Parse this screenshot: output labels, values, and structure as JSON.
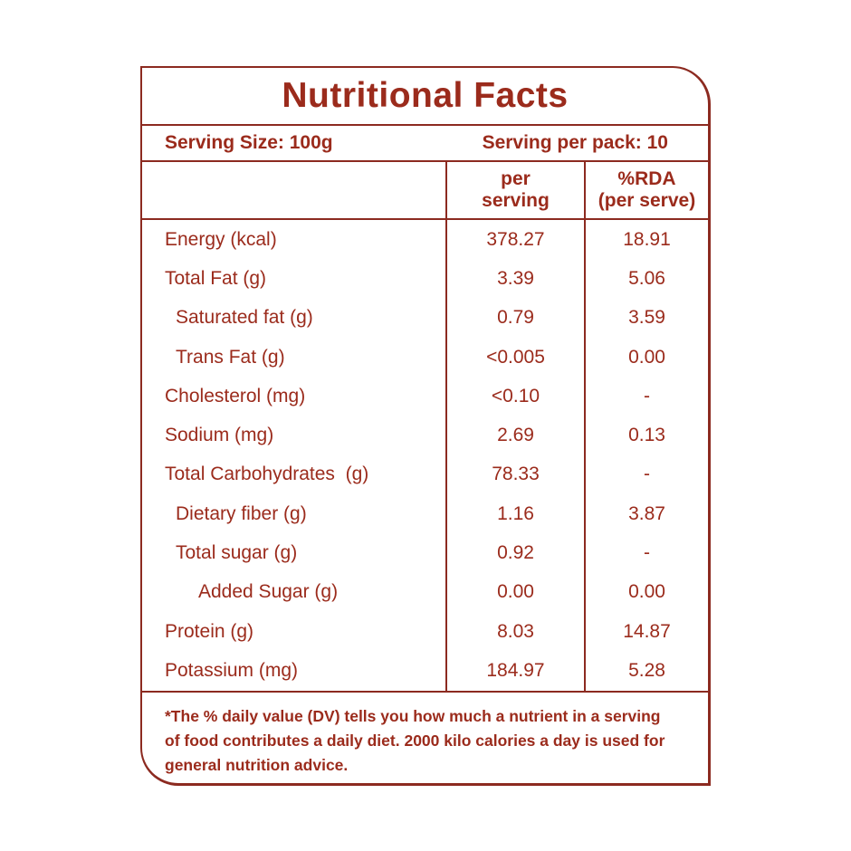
{
  "label": {
    "title": "Nutritional Facts",
    "serving": {
      "size_text": "Serving Size: 100g",
      "per_pack_text": "Serving per pack: 10"
    },
    "header": {
      "per_serving": [
        "per",
        "serving"
      ],
      "rda": [
        "%RDA",
        "(per serve)"
      ]
    },
    "rows": [
      {
        "label": "Energy (kcal)",
        "per_serving": "378.27",
        "rda": "18.91",
        "indent": 0
      },
      {
        "label": "Total Fat (g)",
        "per_serving": "3.39",
        "rda": "5.06",
        "indent": 0
      },
      {
        "label": "Saturated fat (g)",
        "per_serving": "0.79",
        "rda": "3.59",
        "indent": 1
      },
      {
        "label": "Trans Fat (g)",
        "per_serving": "<0.005",
        "rda": "0.00",
        "indent": 1
      },
      {
        "label": "Cholesterol (mg)",
        "per_serving": "<0.10",
        "rda": "-",
        "indent": 0
      },
      {
        "label": "Sodium (mg)",
        "per_serving": "2.69",
        "rda": "0.13",
        "indent": 0
      },
      {
        "label": "Total Carbohydrates  (g)",
        "per_serving": "78.33",
        "rda": "-",
        "indent": 0
      },
      {
        "label": "Dietary fiber (g)",
        "per_serving": "1.16",
        "rda": "3.87",
        "indent": 1
      },
      {
        "label": "Total sugar (g)",
        "per_serving": "0.92",
        "rda": "-",
        "indent": 1
      },
      {
        "label": "Added Sugar (g)",
        "per_serving": "0.00",
        "rda": "0.00",
        "indent": 2
      },
      {
        "label": "Protein (g)",
        "per_serving": "8.03",
        "rda": "14.87",
        "indent": 0
      },
      {
        "label": "Potassium (mg)",
        "per_serving": "184.97",
        "rda": "5.28",
        "indent": 0
      }
    ],
    "footnote": {
      "lines": [
        "*The % daily value (DV) tells you how much a nutrient in a serving",
        "of food contributes a daily diet. 2000 kilo calories a day is used for",
        "general nutrition advice."
      ]
    },
    "colors": {
      "ink": "#9b2b1c",
      "border": "#8c2a20"
    }
  }
}
